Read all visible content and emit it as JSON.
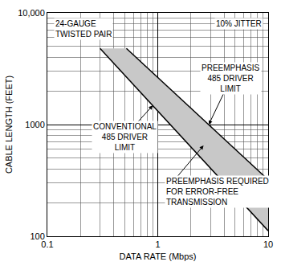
{
  "chart_data": {
    "type": "line",
    "x_label": "DATA RATE (Mbps)",
    "y_label": "CABLE LENGTH (FEET)",
    "log": true,
    "grid": true,
    "xlim": [
      0.1,
      10
    ],
    "xticks": [
      0.1,
      1,
      10
    ],
    "ylim": [
      100,
      10000
    ],
    "yticks": [
      100,
      1000,
      {
        "value": 10000,
        "label": "10,000"
      }
    ],
    "series": [
      {
        "x": [
          0.3,
          10
        ],
        "values": [
          4800,
          112
        ],
        "color": "#000000"
      },
      {
        "x": [
          0.52,
          10
        ],
        "values": [
          4800,
          320
        ],
        "color": "#000000"
      }
    ],
    "annotations": [
      [
        "24-GAUGE",
        "TWISTED PAIR"
      ],
      [
        "10% JITTER"
      ],
      [
        "PREEMPHASIS",
        "485 DRIVER",
        "LIMIT"
      ],
      [
        "CONVENTIONAL",
        "485 DRIVER",
        "LIMIT"
      ],
      [
        "PREEMPHASIS REQUIRED",
        "FOR ERROR-FREE",
        "TRANSMISSION"
      ]
    ]
  }
}
